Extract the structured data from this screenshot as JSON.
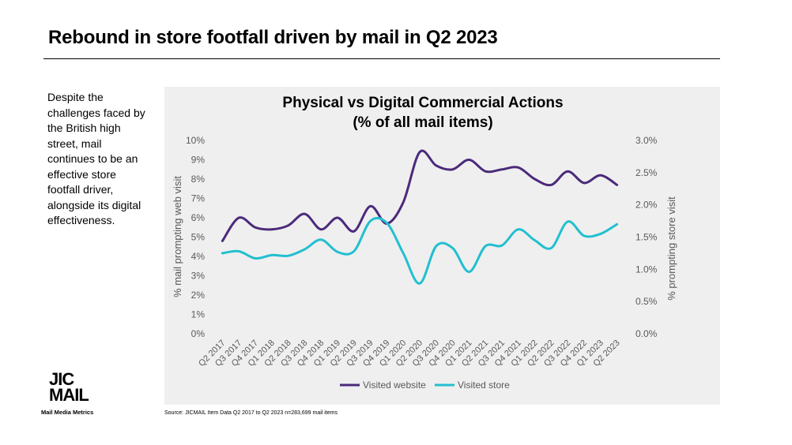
{
  "slide": {
    "title": "Rebound in store footfall driven by mail in Q2 2023",
    "body": "Despite the challenges faced by the British high street, mail continues to be an effective store footfall driver, alongside its digital effectiveness.",
    "source": "Source: JICMAIL  Item Data Q2 2017 to Q2 2023 n=283,699 mail items"
  },
  "logo": {
    "line1": "JIC",
    "line2": "MAIL",
    "tagline": "Mail Media Metrics"
  },
  "colors": {
    "website": "#4b2a7b",
    "store": "#22bfd0",
    "panel": "#efefef"
  },
  "chart_data": {
    "type": "line",
    "title_line1": "Physical vs Digital Commercial Actions",
    "title_line2": "(% of all mail items)",
    "ylabel": "% mail prompting web visit",
    "y2label": "% prompting store visit",
    "ylim": [
      0,
      10
    ],
    "y2lim": [
      0,
      3
    ],
    "yticks": [
      "0%",
      "1%",
      "2%",
      "3%",
      "4%",
      "5%",
      "6%",
      "7%",
      "8%",
      "9%",
      "10%"
    ],
    "y2ticks": [
      "0.0%",
      "0.5%",
      "1.0%",
      "1.5%",
      "2.0%",
      "2.5%",
      "3.0%"
    ],
    "grid": false,
    "legend_position": "bottom",
    "categories": [
      "Q2 2017",
      "Q3 2017",
      "Q4 2017",
      "Q1 2018",
      "Q2 2018",
      "Q3 2018",
      "Q4 2018",
      "Q1 2019",
      "Q2 2019",
      "Q3 2019",
      "Q4 2019",
      "Q1 2020",
      "Q2 2020",
      "Q3 2020",
      "Q4 2020",
      "Q1 2021",
      "Q2 2021",
      "Q3 2021",
      "Q4 2021",
      "Q1 2022",
      "Q2 2022",
      "Q3 2022",
      "Q4 2022",
      "Q1 2023",
      "Q2 2023"
    ],
    "series": [
      {
        "name": "Visited website",
        "axis": "left",
        "values": [
          4.8,
          6.0,
          5.5,
          5.4,
          5.6,
          6.2,
          5.4,
          6.0,
          5.3,
          6.6,
          5.7,
          6.8,
          9.4,
          8.7,
          8.5,
          9.0,
          8.4,
          8.5,
          8.6,
          8.0,
          7.7,
          8.4,
          7.8,
          8.2,
          7.7
        ]
      },
      {
        "name": "Visited store",
        "axis": "right",
        "values": [
          1.25,
          1.28,
          1.17,
          1.22,
          1.21,
          1.31,
          1.46,
          1.27,
          1.28,
          1.75,
          1.72,
          1.25,
          0.78,
          1.36,
          1.33,
          0.96,
          1.36,
          1.37,
          1.62,
          1.45,
          1.33,
          1.74,
          1.52,
          1.55,
          1.7
        ]
      }
    ]
  }
}
